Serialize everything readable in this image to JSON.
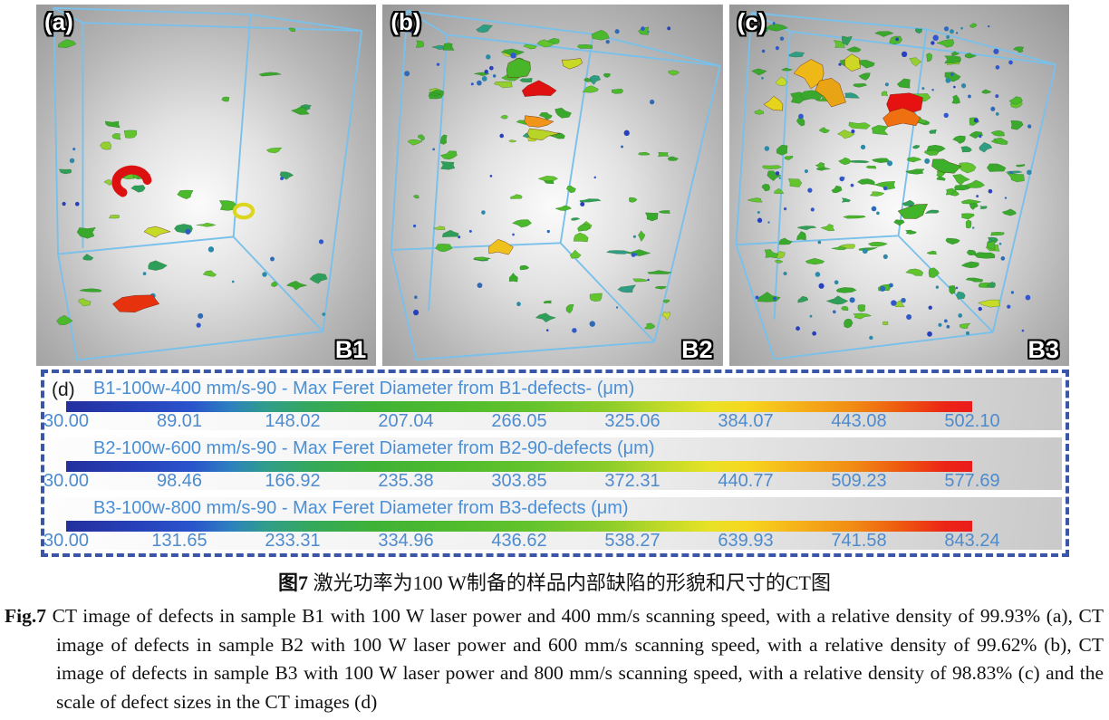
{
  "figure": {
    "panels": [
      {
        "corner_label": "(a)",
        "sample_label": "B1",
        "defect_density": "sparse"
      },
      {
        "corner_label": "(b)",
        "sample_label": "B2",
        "defect_density": "moderate"
      },
      {
        "corner_label": "(c)",
        "sample_label": "B3",
        "defect_density": "dense"
      }
    ],
    "scale_panel": {
      "corner_label": "(d)",
      "bars": [
        {
          "title": "B1-100w-400 mm/s-90 - Max Feret Diameter from B1-defects- (μm)",
          "ticks": [
            "30.00",
            "89.01",
            "148.02",
            "207.04",
            "266.05",
            "325.06",
            "384.07",
            "443.08",
            "502.10"
          ]
        },
        {
          "title": "B2-100w-600 mm/s-90 - Max Feret Diameter from B2-90-defects (μm)",
          "ticks": [
            "30.00",
            "98.46",
            "166.92",
            "235.38",
            "303.85",
            "372.31",
            "440.77",
            "509.23",
            "577.69"
          ]
        },
        {
          "title": "B3-100w-800 mm/s-90 - Max Feret Diameter from B3-defects (μm)",
          "ticks": [
            "30.00",
            "131.65",
            "233.31",
            "334.96",
            "436.62",
            "538.27",
            "639.93",
            "741.58",
            "843.24"
          ]
        }
      ]
    },
    "caption_zh": {
      "label": "图7",
      "text": "激光功率为100 W制备的样品内部缺陷的形貌和尺寸的CT图"
    },
    "caption_en": {
      "label": "Fig.7",
      "text": "CT image of defects in sample B1 with 100 W laser power and 400 mm/s scanning speed, with a relative density of 99.93% (a), CT image of defects in sample B2 with 100 W laser power and 600 mm/s scanning speed, with a relative density of 99.62% (b), CT image of defects in sample B3 with 100 W laser power and 800 mm/s scanning speed, with a relative density of 98.83% (c) and the scale of defect sizes in the CT images (d)"
    }
  },
  "chart_data": [
    {
      "type": "colorbar",
      "title": "B1-100w-400 mm/s-90 - Max Feret Diameter from B1-defects- (μm)",
      "unit": "μm",
      "min": 30.0,
      "max": 502.1,
      "ticks": [
        30.0,
        89.01,
        148.02,
        207.04,
        266.05,
        325.06,
        384.07,
        443.08,
        502.1
      ]
    },
    {
      "type": "colorbar",
      "title": "B2-100w-600 mm/s-90 - Max Feret Diameter from B2-90-defects (μm)",
      "unit": "μm",
      "min": 30.0,
      "max": 577.69,
      "ticks": [
        30.0,
        98.46,
        166.92,
        235.38,
        303.85,
        372.31,
        440.77,
        509.23,
        577.69
      ]
    },
    {
      "type": "colorbar",
      "title": "B3-100w-800 mm/s-90 - Max Feret Diameter from B3-defects (μm)",
      "unit": "μm",
      "min": 30.0,
      "max": 843.24,
      "ticks": [
        30.0,
        131.65,
        233.31,
        334.96,
        436.62,
        538.27,
        639.93,
        741.58,
        843.24
      ]
    }
  ],
  "colors": {
    "title_blue": "#4a8fd6",
    "tick_blue": "#4e8bcd",
    "dashed_border_blue": "#3a56a8",
    "wireframe_blue": "#79c0ea",
    "colormap": [
      {
        "c": "#232f9e",
        "p": 0
      },
      {
        "c": "#2742ba",
        "p": 8
      },
      {
        "c": "#2a54cc",
        "p": 14
      },
      {
        "c": "#2d7fc0",
        "p": 18
      },
      {
        "c": "#2f9d8c",
        "p": 22
      },
      {
        "c": "#35a85c",
        "p": 27
      },
      {
        "c": "#3fb236",
        "p": 34
      },
      {
        "c": "#52bd2c",
        "p": 44
      },
      {
        "c": "#66c42c",
        "p": 52
      },
      {
        "c": "#8ecd2a",
        "p": 60
      },
      {
        "c": "#c0da28",
        "p": 66
      },
      {
        "c": "#e8e226",
        "p": 71
      },
      {
        "c": "#f6d71e",
        "p": 75
      },
      {
        "c": "#f5b01a",
        "p": 81
      },
      {
        "c": "#f18a14",
        "p": 87
      },
      {
        "c": "#ee5a10",
        "p": 92
      },
      {
        "c": "#ec2516",
        "p": 97
      },
      {
        "c": "#eb1b1b",
        "p": 100
      }
    ]
  }
}
